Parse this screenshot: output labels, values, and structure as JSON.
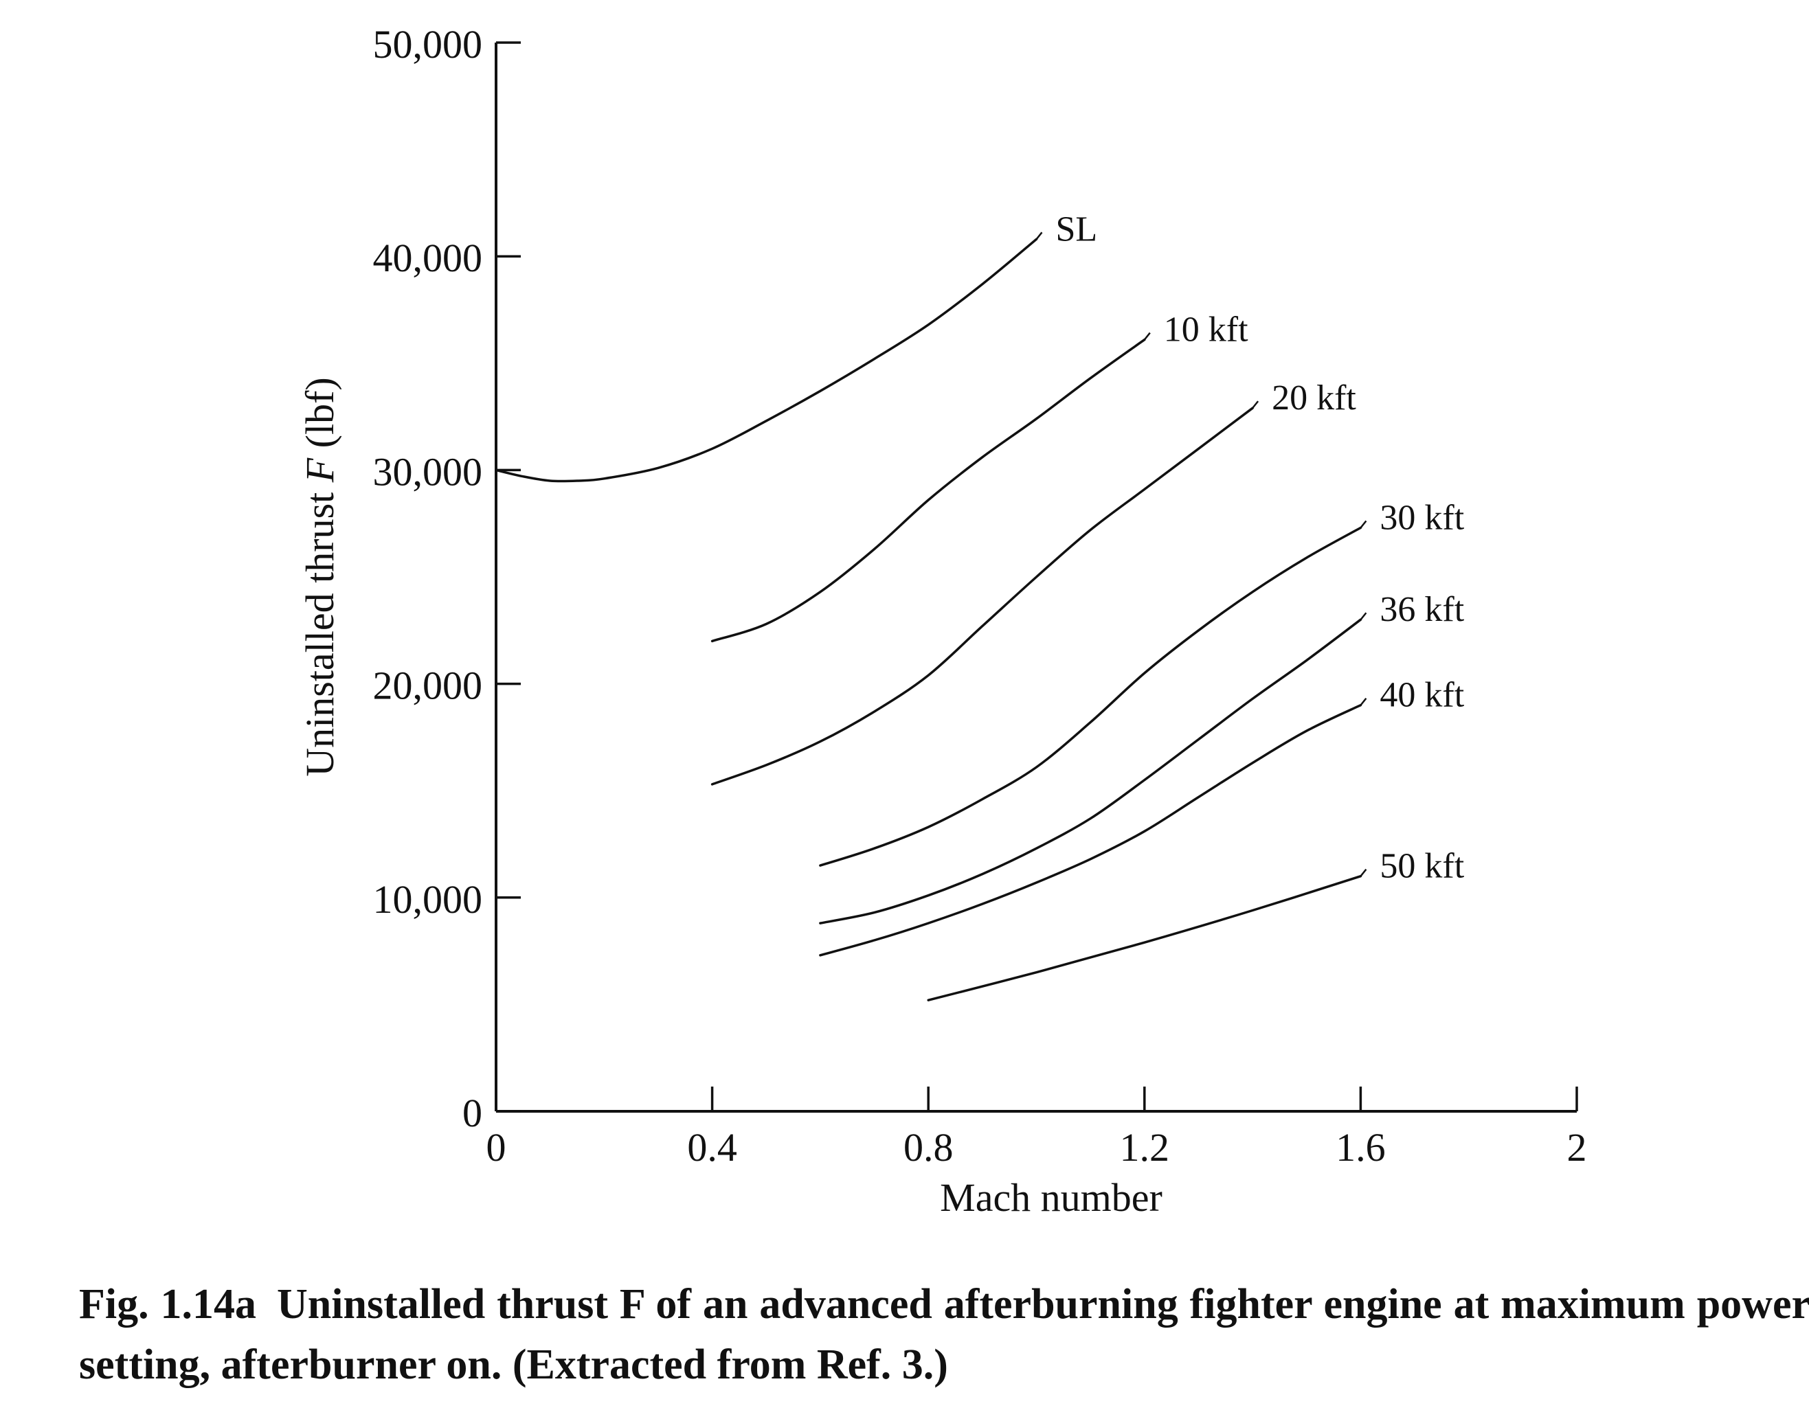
{
  "chart_data": {
    "type": "line",
    "xlabel": "Mach number",
    "ylabel_main": "Uninstalled thrust ",
    "ylabel_symbol": "F",
    "ylabel_unit": " (lbf)",
    "xlim": [
      0,
      2
    ],
    "ylim": [
      0,
      50000
    ],
    "x_ticks": [
      0,
      0.4,
      0.8,
      1.2,
      1.6,
      2
    ],
    "x_tick_labels": [
      "0",
      "0.4",
      "0.8",
      "1.2",
      "1.6",
      "2"
    ],
    "y_ticks": [
      0,
      10000,
      20000,
      30000,
      40000,
      50000
    ],
    "y_tick_labels": [
      "0",
      "10,000",
      "20,000",
      "30,000",
      "40,000",
      "50,000"
    ],
    "grid": false,
    "series": [
      {
        "name": "SL",
        "x": [
          0,
          0.05,
          0.1,
          0.15,
          0.2,
          0.3,
          0.4,
          0.5,
          0.6,
          0.7,
          0.8,
          0.9,
          1.0
        ],
        "y": [
          30000,
          29700,
          29500,
          29500,
          29600,
          30100,
          31000,
          32300,
          33700,
          35200,
          36800,
          38700,
          40800
        ]
      },
      {
        "name": "10 kft",
        "x": [
          0.4,
          0.5,
          0.6,
          0.7,
          0.8,
          0.9,
          1.0,
          1.1,
          1.2
        ],
        "y": [
          22000,
          22800,
          24300,
          26300,
          28600,
          30600,
          32400,
          34300,
          36100
        ]
      },
      {
        "name": "20 kft",
        "x": [
          0.4,
          0.5,
          0.6,
          0.7,
          0.8,
          0.9,
          1.0,
          1.1,
          1.2,
          1.3,
          1.4
        ],
        "y": [
          15300,
          16200,
          17300,
          18700,
          20400,
          22700,
          25000,
          27200,
          29100,
          31000,
          32900
        ]
      },
      {
        "name": "30 kft",
        "x": [
          0.6,
          0.7,
          0.8,
          0.9,
          1.0,
          1.1,
          1.2,
          1.3,
          1.4,
          1.5,
          1.6
        ],
        "y": [
          11500,
          12300,
          13300,
          14600,
          16100,
          18200,
          20500,
          22500,
          24300,
          25900,
          27300
        ]
      },
      {
        "name": "36 kft",
        "x": [
          0.6,
          0.7,
          0.8,
          0.9,
          1.0,
          1.1,
          1.2,
          1.3,
          1.4,
          1.5,
          1.6
        ],
        "y": [
          8800,
          9300,
          10100,
          11100,
          12300,
          13700,
          15500,
          17400,
          19300,
          21100,
          23000
        ]
      },
      {
        "name": "40 kft",
        "x": [
          0.6,
          0.7,
          0.8,
          0.9,
          1.0,
          1.1,
          1.2,
          1.3,
          1.4,
          1.5,
          1.6
        ],
        "y": [
          7300,
          8000,
          8800,
          9700,
          10700,
          11800,
          13100,
          14700,
          16300,
          17800,
          19000
        ]
      },
      {
        "name": "50 kft",
        "x": [
          0.8,
          1.0,
          1.2,
          1.4,
          1.6
        ],
        "y": [
          5200,
          6500,
          7900,
          9400,
          11000
        ]
      }
    ]
  },
  "caption": {
    "figure_number": "Fig. 1.14a",
    "text": "Uninstalled thrust F of an advanced afterburning fighter engine at maximum power setting, afterburner on. (Extracted from Ref. 3.)"
  }
}
